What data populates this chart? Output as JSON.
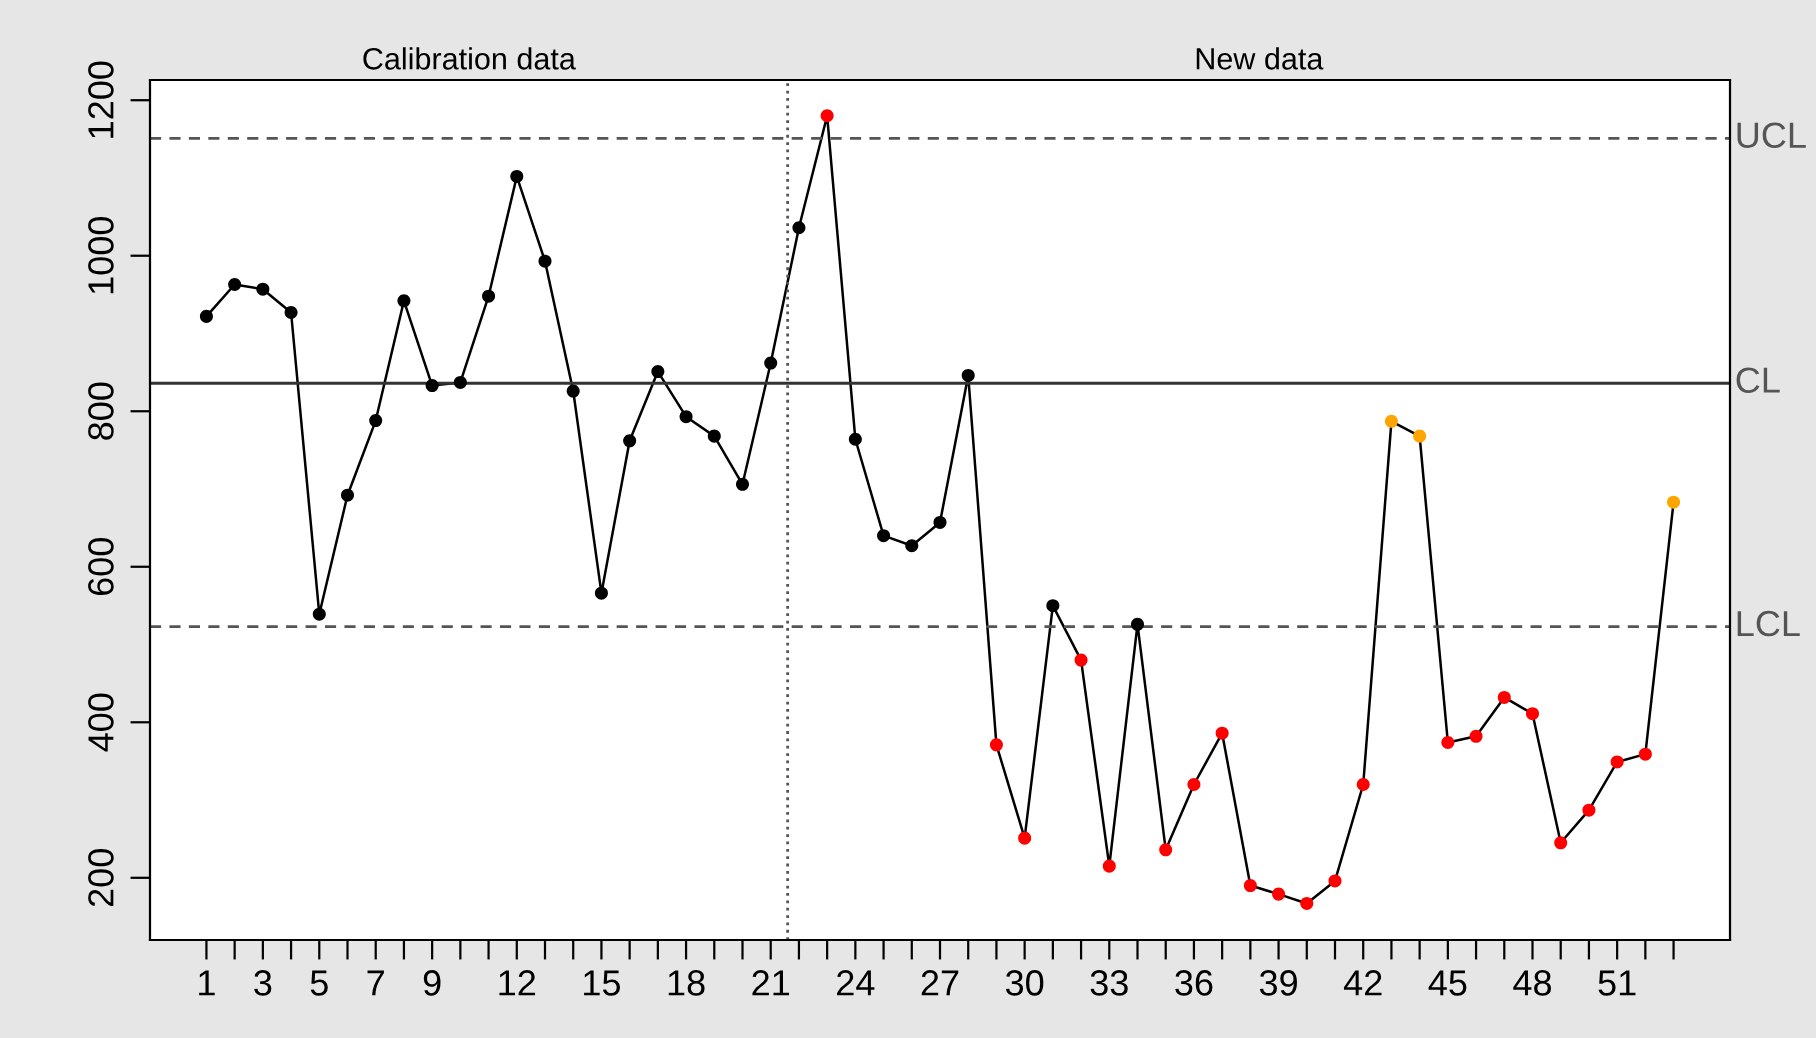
{
  "chart_data": {
    "type": "line",
    "marker": "circle",
    "line_style": "solid",
    "grid": false,
    "legend": false,
    "x": [
      1,
      2,
      3,
      4,
      5,
      6,
      7,
      8,
      9,
      10,
      11,
      12,
      13,
      14,
      15,
      16,
      17,
      18,
      19,
      20,
      21,
      22,
      23,
      24,
      25,
      26,
      27,
      28,
      29,
      30,
      31,
      32,
      33,
      34,
      35,
      36,
      37,
      38,
      39,
      40,
      41,
      42,
      43,
      44,
      45,
      46,
      47,
      48,
      49,
      50,
      51,
      52,
      53
    ],
    "series": [
      {
        "color": "#000000",
        "values": [
          922,
          963,
          957,
          927,
          539,
          692,
          788,
          942,
          833,
          837,
          948,
          1102,
          993,
          826,
          566,
          762,
          851,
          793,
          768,
          706,
          862,
          1036,
          1180,
          764,
          640,
          627,
          657,
          846,
          371,
          251,
          550,
          480,
          215,
          526,
          236,
          320,
          386,
          190,
          179,
          167,
          196,
          320,
          787,
          768,
          374,
          382,
          432,
          411,
          245,
          287,
          349,
          359,
          683
        ],
        "colors": [
          "#000000",
          "#000000",
          "#000000",
          "#000000",
          "#000000",
          "#000000",
          "#000000",
          "#000000",
          "#000000",
          "#000000",
          "#000000",
          "#000000",
          "#000000",
          "#000000",
          "#000000",
          "#000000",
          "#000000",
          "#000000",
          "#000000",
          "#000000",
          "#000000",
          "#000000",
          "#ff0000",
          "#000000",
          "#000000",
          "#000000",
          "#000000",
          "#000000",
          "#ff0000",
          "#ff0000",
          "#000000",
          "#ff0000",
          "#ff0000",
          "#000000",
          "#ff0000",
          "#ff0000",
          "#ff0000",
          "#ff0000",
          "#ff0000",
          "#ff0000",
          "#ff0000",
          "#ff0000",
          "#ffa500",
          "#ffa500",
          "#ff0000",
          "#ff0000",
          "#ff0000",
          "#ff0000",
          "#ff0000",
          "#ff0000",
          "#ff0000",
          "#ff0000",
          "#ffa500"
        ]
      }
    ],
    "xlim": [
      -1,
      55
    ],
    "xticks": [
      1,
      {
        "value": 2,
        "label": null
      },
      3,
      {
        "value": 4,
        "label": null
      },
      5,
      {
        "value": 6,
        "label": null
      },
      7,
      {
        "value": 8,
        "label": null
      },
      9,
      {
        "value": 10,
        "label": null
      },
      {
        "value": 11,
        "label": null
      },
      12,
      {
        "value": 13,
        "label": null
      },
      {
        "value": 14,
        "label": null
      },
      15,
      {
        "value": 16,
        "label": null
      },
      {
        "value": 17,
        "label": null
      },
      18,
      {
        "value": 19,
        "label": null
      },
      {
        "value": 20,
        "label": null
      },
      21,
      {
        "value": 22,
        "label": null
      },
      {
        "value": 23,
        "label": null
      },
      24,
      {
        "value": 25,
        "label": null
      },
      {
        "value": 26,
        "label": null
      },
      27,
      {
        "value": 28,
        "label": null
      },
      {
        "value": 29,
        "label": null
      },
      30,
      {
        "value": 31,
        "label": null
      },
      {
        "value": 32,
        "label": null
      },
      33,
      {
        "value": 34,
        "label": null
      },
      {
        "value": 35,
        "label": null
      },
      36,
      {
        "value": 37,
        "label": null
      },
      {
        "value": 38,
        "label": null
      },
      39,
      {
        "value": 40,
        "label": null
      },
      {
        "value": 41,
        "label": null
      },
      42,
      {
        "value": 43,
        "label": null
      },
      {
        "value": 44,
        "label": null
      },
      45,
      {
        "value": 46,
        "label": null
      },
      {
        "value": 47,
        "label": null
      },
      48,
      {
        "value": 49,
        "label": null
      },
      {
        "value": 50,
        "label": null
      },
      51,
      {
        "value": 52,
        "label": null
      },
      {
        "value": 53,
        "label": null
      }
    ],
    "ylim": [
      120,
      1226
    ],
    "yticks": [
      200,
      400,
      600,
      800,
      1000,
      1200
    ],
    "ref_lines": [
      {
        "axis": "y",
        "value": 1151,
        "label": "UCL",
        "line_style": "dashed",
        "color": "#555555"
      },
      {
        "axis": "y",
        "value": 836,
        "label": "CL",
        "line_style": "solid",
        "color": "#333333"
      },
      {
        "axis": "y",
        "value": 523,
        "label": "LCL",
        "line_style": "dashed",
        "color": "#555555"
      },
      {
        "axis": "x",
        "value": 21.6,
        "label": null,
        "line_style": "dotted",
        "color": "#555555"
      }
    ],
    "annotations": [
      {
        "text": "Calibration data"
      },
      {
        "text": "New data"
      }
    ]
  }
}
